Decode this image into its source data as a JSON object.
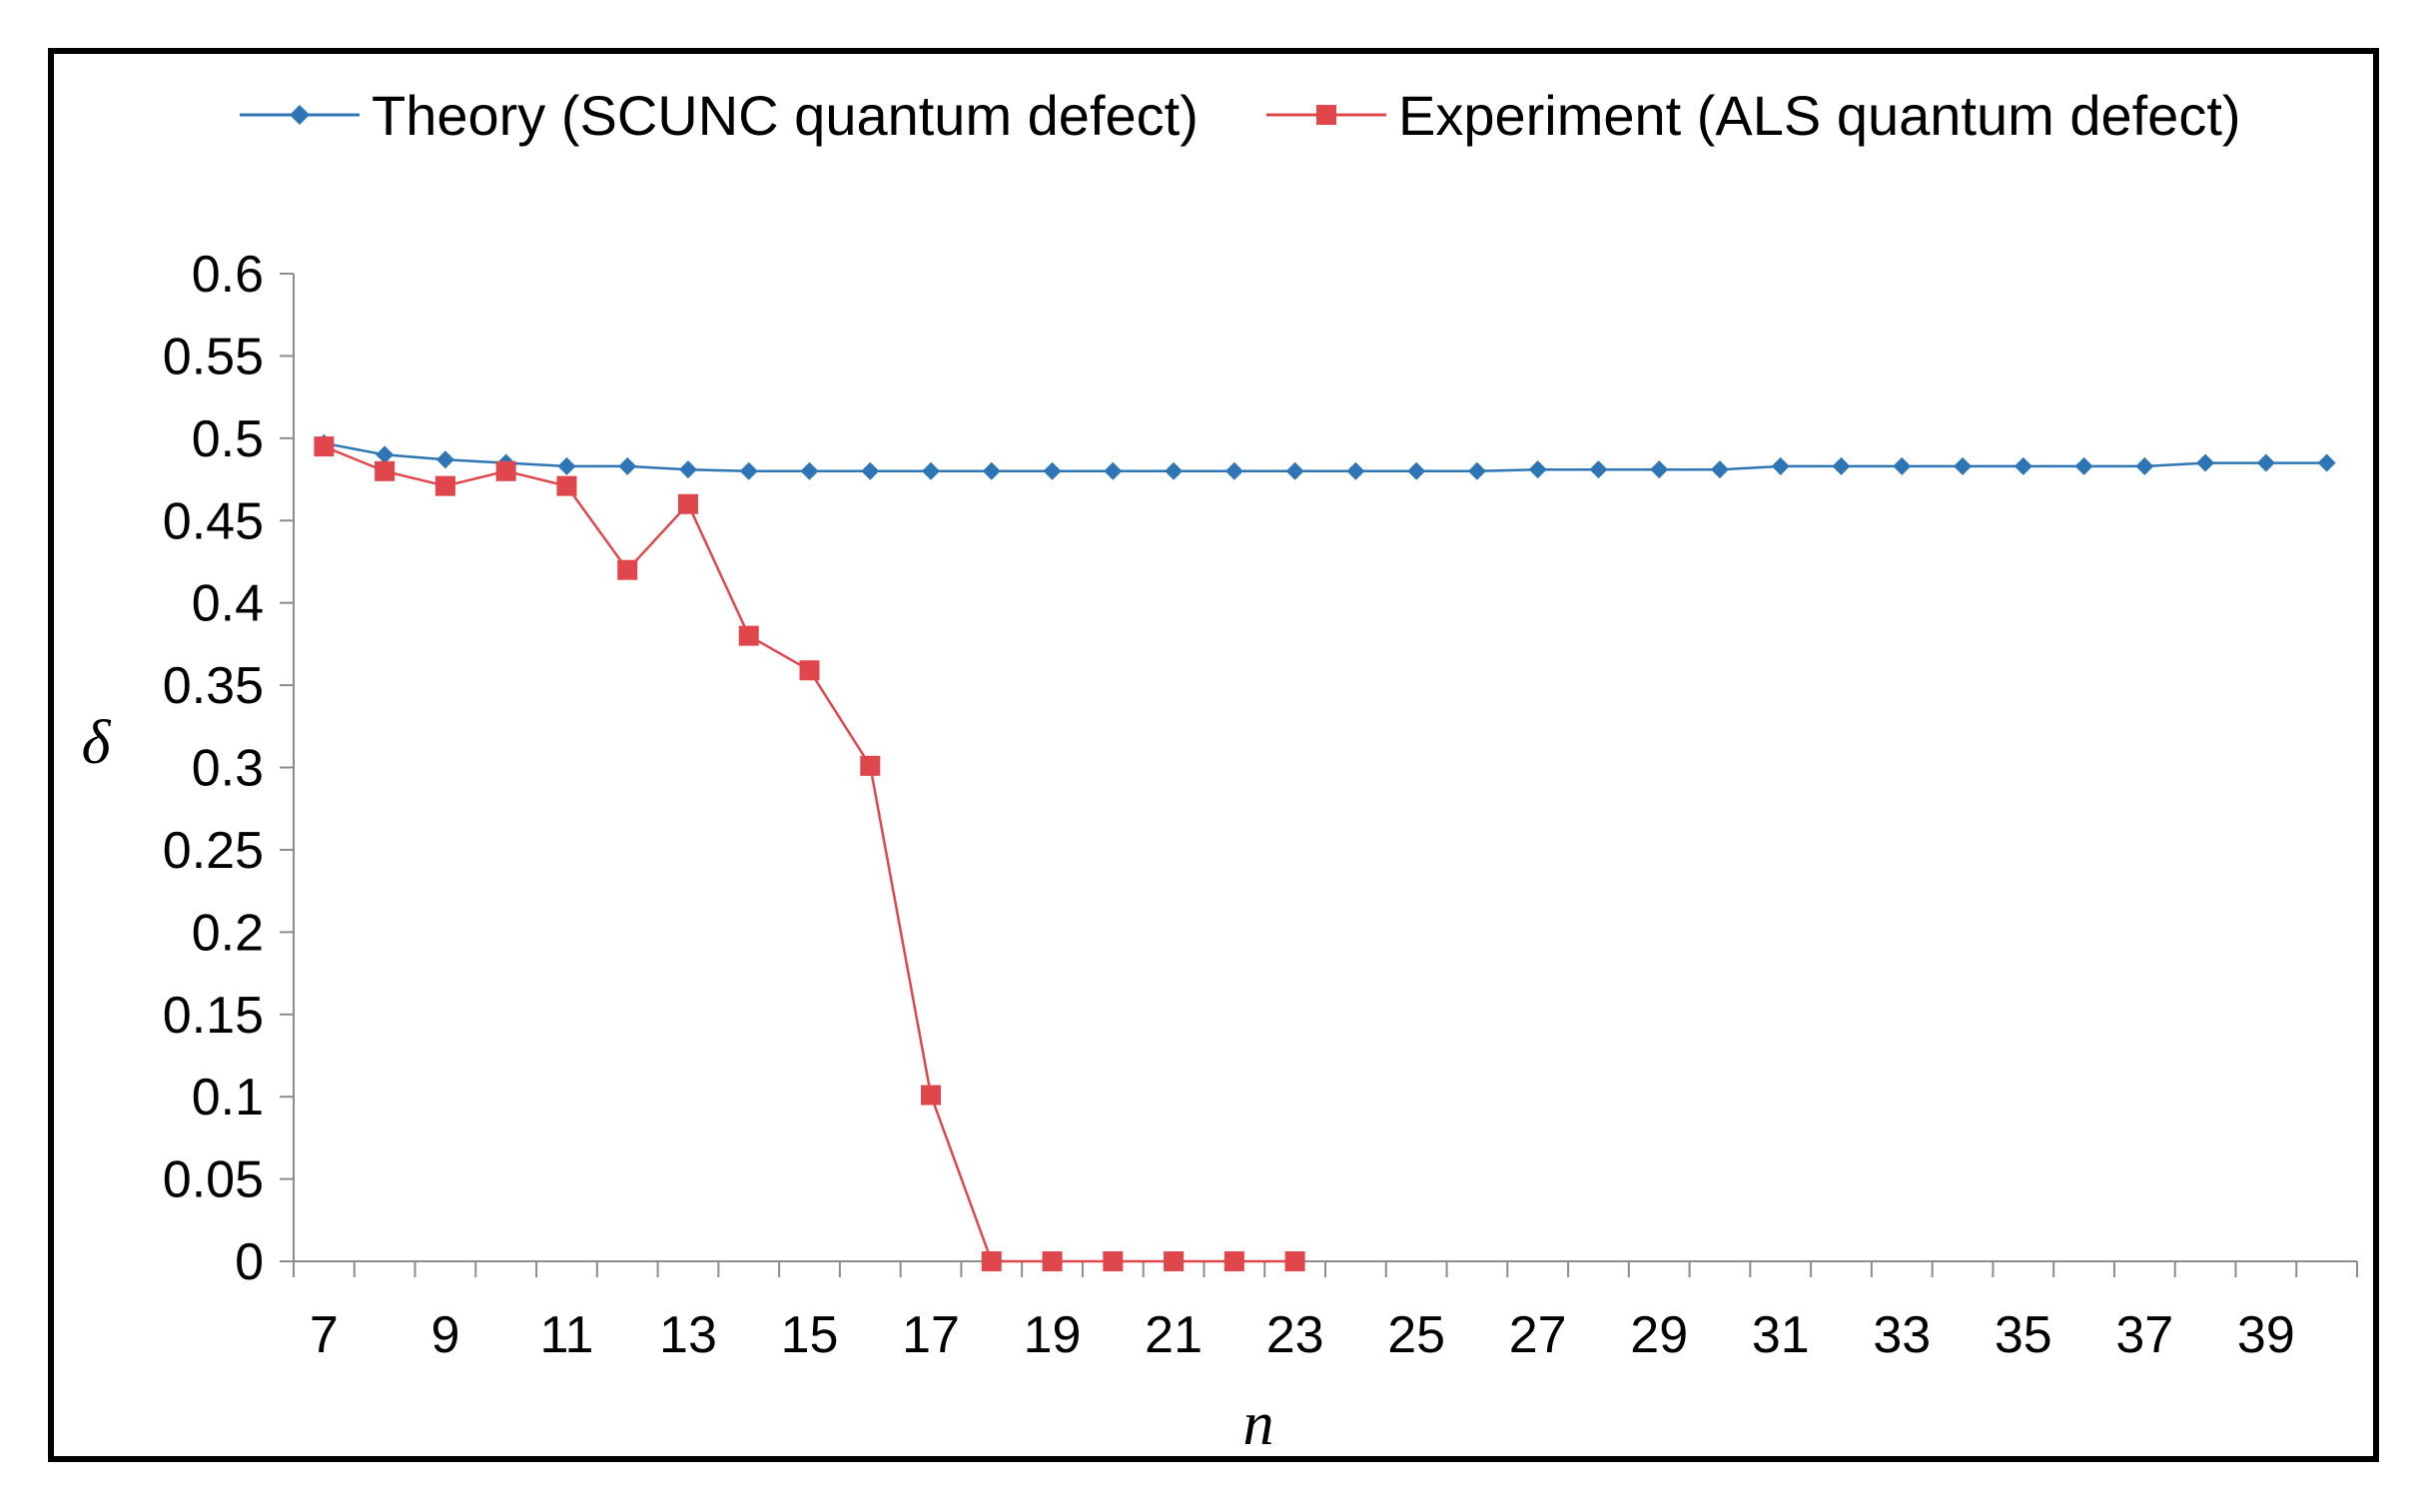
{
  "chart_data": {
    "type": "line",
    "title": "",
    "xlabel": "n",
    "ylabel": "δ",
    "x": [
      7,
      8,
      9,
      10,
      11,
      12,
      13,
      14,
      15,
      16,
      17,
      18,
      19,
      20,
      21,
      22,
      23,
      24,
      25,
      26,
      27,
      28,
      29,
      30,
      31,
      32,
      33,
      34,
      35,
      36,
      37,
      38,
      39,
      40
    ],
    "xlim": [
      6.5,
      40.5
    ],
    "ylim": [
      0,
      0.6
    ],
    "x_tick_labels": [
      "7",
      "9",
      "11",
      "13",
      "15",
      "17",
      "19",
      "21",
      "23",
      "25",
      "27",
      "29",
      "31",
      "33",
      "35",
      "37",
      "39"
    ],
    "y_tick_labels": [
      "0",
      "0.05",
      "0.1",
      "0.15",
      "0.2",
      "0.25",
      "0.3",
      "0.35",
      "0.4",
      "0.45",
      "0.5",
      "0.55",
      "0.6"
    ],
    "grid": false,
    "legend_position": "top",
    "series": [
      {
        "name": "Theory (SCUNC quantum defect)",
        "color": "#2E75B6",
        "marker": "diamond",
        "x": [
          7,
          8,
          9,
          10,
          11,
          12,
          13,
          14,
          15,
          16,
          17,
          18,
          19,
          20,
          21,
          22,
          23,
          24,
          25,
          26,
          27,
          28,
          29,
          30,
          31,
          32,
          33,
          34,
          35,
          36,
          37,
          38,
          39,
          40
        ],
        "values": [
          0.497,
          0.49,
          0.487,
          0.485,
          0.483,
          0.483,
          0.481,
          0.48,
          0.48,
          0.48,
          0.48,
          0.48,
          0.48,
          0.48,
          0.48,
          0.48,
          0.48,
          0.48,
          0.48,
          0.48,
          0.481,
          0.481,
          0.481,
          0.481,
          0.483,
          0.483,
          0.483,
          0.483,
          0.483,
          0.483,
          0.483,
          0.485,
          0.485,
          0.485
        ]
      },
      {
        "name": "Experiment (ALS quantum defect)",
        "color": "#E0474C",
        "marker": "square",
        "x": [
          7,
          8,
          9,
          10,
          11,
          12,
          13,
          14,
          15,
          16,
          17,
          18,
          19,
          20,
          21,
          22,
          23
        ],
        "values": [
          0.495,
          0.48,
          0.471,
          0.48,
          0.471,
          0.42,
          0.46,
          0.38,
          0.359,
          0.301,
          0.101,
          0,
          0,
          0,
          0,
          0,
          0
        ]
      }
    ]
  }
}
